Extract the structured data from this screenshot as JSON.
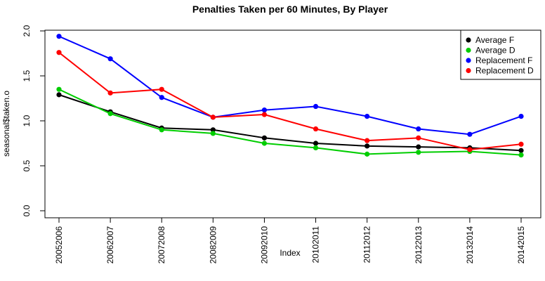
{
  "chart_data": {
    "type": "line",
    "title": "Penalties Taken per 60 Minutes, By Player",
    "xlabel": "Index",
    "ylabel": "seasonal$taken.o",
    "categories": [
      "20052006",
      "20062007",
      "20072008",
      "20082009",
      "20092010",
      "20102011",
      "20112012",
      "20122013",
      "20132014",
      "20142015"
    ],
    "ylim": [
      0.0,
      2.0
    ],
    "yticks": [
      "0.0",
      "0.5",
      "1.0",
      "1.5",
      "2.0"
    ],
    "legend_position": "top-right",
    "grid": false,
    "series": [
      {
        "name": "Average F",
        "color": "#000000",
        "values": [
          1.29,
          1.1,
          0.92,
          0.9,
          0.81,
          0.75,
          0.72,
          0.71,
          0.7,
          0.67
        ]
      },
      {
        "name": "Average D",
        "color": "#00cd00",
        "values": [
          1.35,
          1.08,
          0.9,
          0.86,
          0.75,
          0.7,
          0.63,
          0.65,
          0.66,
          0.62
        ]
      },
      {
        "name": "Replacement F",
        "color": "#0000ff",
        "values": [
          1.94,
          1.69,
          1.26,
          1.04,
          1.12,
          1.16,
          1.05,
          0.91,
          0.85,
          1.05
        ]
      },
      {
        "name": "Replacement D",
        "color": "#ff0000",
        "values": [
          1.76,
          1.31,
          1.35,
          1.04,
          1.07,
          0.91,
          0.78,
          0.81,
          0.68,
          0.74
        ]
      }
    ]
  }
}
